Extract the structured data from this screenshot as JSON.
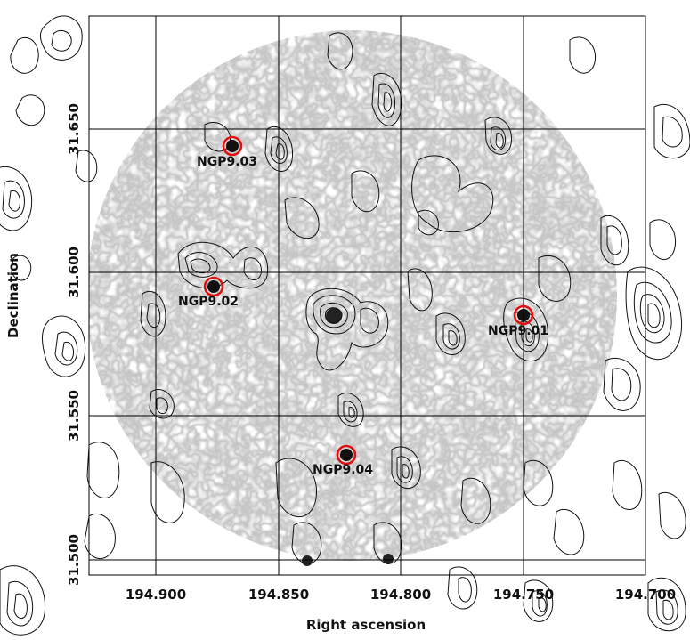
{
  "figure": {
    "x_axis_title": "Right ascension",
    "y_axis_title": "Declination",
    "x_ticks": [
      "194.900",
      "194.850",
      "194.800",
      "194.750",
      "194.700"
    ],
    "y_ticks": [
      "31.650",
      "31.600",
      "31.550",
      "31.500"
    ],
    "sources": [
      {
        "label": "NGP9.01"
      },
      {
        "label": "NGP9.02"
      },
      {
        "label": "NGP9.03"
      },
      {
        "label": "NGP9.04"
      }
    ],
    "colors": {
      "marker": "#e01010",
      "contour": "#111111"
    }
  }
}
